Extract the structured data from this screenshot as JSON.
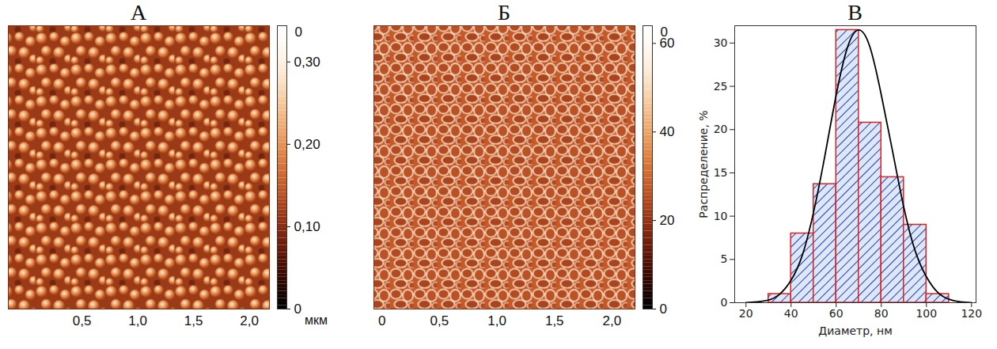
{
  "chart_data": [
    {
      "type": "image",
      "title": "А",
      "xlim": [
        -0.16,
        2.18
      ],
      "xticks": [
        {
          "value": 0.5,
          "label": "0,5"
        },
        {
          "value": 1,
          "label": "1,0"
        },
        {
          "value": 1.5,
          "label": "1,5"
        },
        {
          "value": 2,
          "label": "2,0"
        }
      ],
      "xlabel": "мкм",
      "colorbar": {
        "range": [
          0,
          0.344
        ],
        "ticks": [
          0,
          {
            "value": 0.1,
            "label": "0,10"
          },
          {
            "value": 0.2,
            "label": "0,20"
          },
          {
            "value": 0.3,
            "label": "0,30"
          }
        ],
        "top_label": "0"
      }
    },
    {
      "type": "image",
      "title": "Б",
      "xlim": [
        -0.07,
        2.2
      ],
      "xticks": [
        0,
        {
          "value": 0.5,
          "label": "0,5"
        },
        {
          "value": 1,
          "label": "1,0"
        },
        {
          "value": 1.5,
          "label": "1,5"
        },
        {
          "value": 2,
          "label": "2,0"
        }
      ],
      "colorbar": {
        "range": [
          0,
          64
        ],
        "ticks": [
          0,
          20,
          40,
          60
        ],
        "top_label": "0"
      }
    },
    {
      "type": "histogram",
      "title": "В",
      "xlabel": "Диаметр, нм",
      "ylabel": "Распределение, %",
      "bins": [
        30,
        40,
        50,
        60,
        70,
        80,
        90,
        100,
        110
      ],
      "counts": [
        1,
        8,
        13.7,
        31.5,
        20.8,
        14.5,
        9,
        1
      ],
      "color": "#dce8f5",
      "xlim": [
        15,
        122
      ],
      "xticks": [
        20,
        40,
        60,
        80,
        100,
        120
      ],
      "ylim": [
        0,
        32
      ],
      "yticks": [
        0,
        5,
        10,
        15,
        20,
        25,
        30
      ],
      "fit": {
        "x": [
          20,
          25,
          30,
          35,
          40,
          45,
          50,
          55,
          60,
          65,
          70,
          75,
          80,
          85,
          90,
          95,
          100,
          105,
          110,
          115,
          120
        ],
        "values": [
          0,
          0.1,
          0.3,
          1,
          2.6,
          5.5,
          10.5,
          17,
          24,
          29.5,
          31.5,
          29.5,
          24,
          17.5,
          11,
          6,
          3,
          1.2,
          0.4,
          0.1,
          0
        ],
        "color": "#000000"
      }
    }
  ]
}
